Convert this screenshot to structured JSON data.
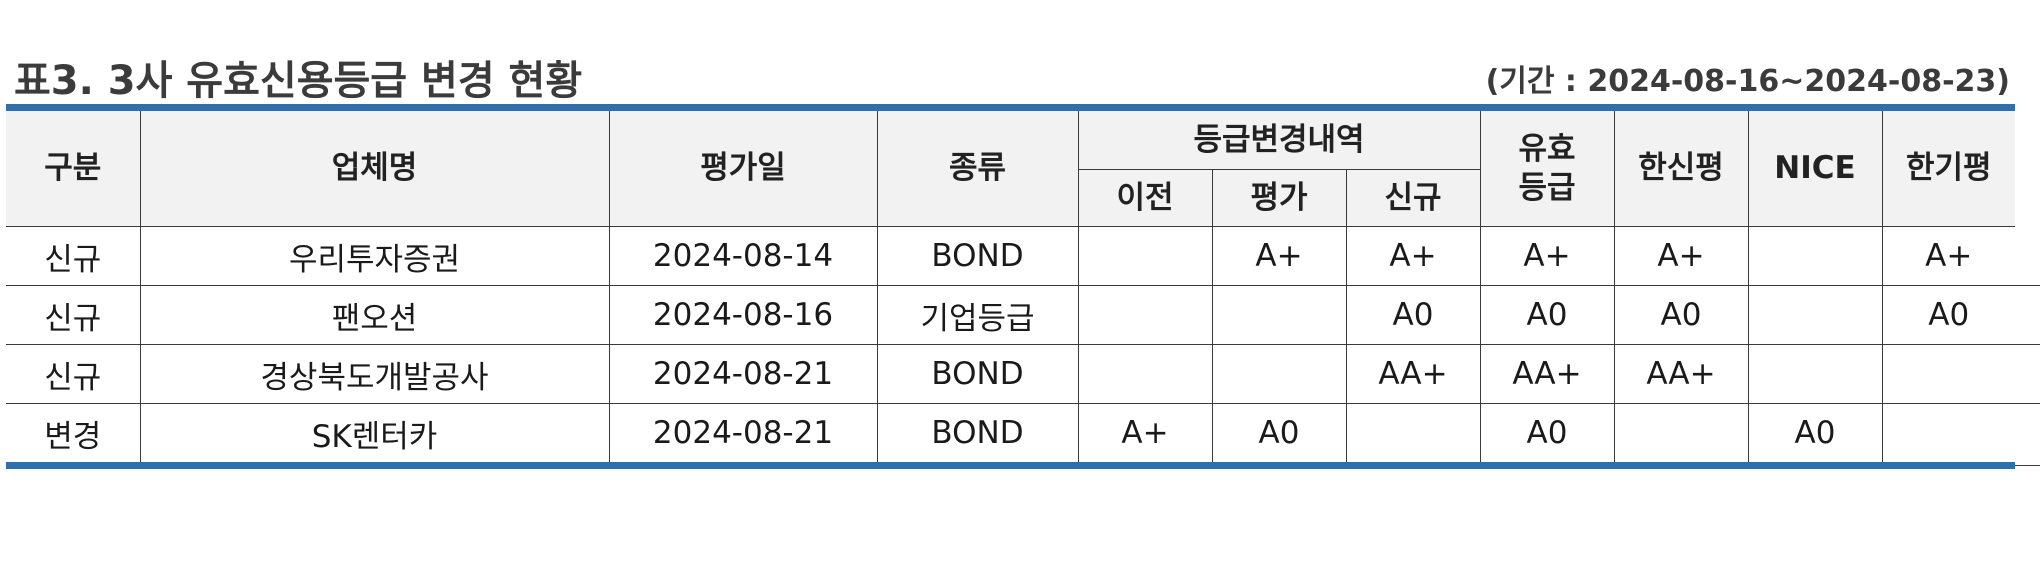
{
  "title": "표3. 3사 유효신용등급 변경 현황",
  "period": "(기간 : 2024-08-16~2024-08-23)",
  "table": {
    "headers": {
      "category": "구분",
      "company": "업체명",
      "eval_date": "평가일",
      "type": "종류",
      "change_group": "등급변경내역",
      "prev": "이전",
      "eval": "평가",
      "new": "신규",
      "valid_line1": "유효",
      "valid_line2": "등급",
      "hanshin": "한신평",
      "nice": "NICE",
      "hangi": "한기평"
    },
    "rows": [
      {
        "category": "신규",
        "company": "우리투자증권",
        "eval_date": "2024-08-14",
        "type": "BOND",
        "prev": "",
        "eval": "A+",
        "new": "A+",
        "valid": "A+",
        "hanshin": "A+",
        "nice": "",
        "hangi": "A+"
      },
      {
        "category": "신규",
        "company": "팬오션",
        "eval_date": "2024-08-16",
        "type": "기업등급",
        "prev": "",
        "eval": "",
        "new": "A0",
        "valid": "A0",
        "hanshin": "A0",
        "nice": "",
        "hangi": "A0"
      },
      {
        "category": "신규",
        "company": "경상북도개발공사",
        "eval_date": "2024-08-21",
        "type": "BOND",
        "prev": "",
        "eval": "",
        "new": "AA+",
        "valid": "AA+",
        "hanshin": "AA+",
        "nice": "",
        "hangi": ""
      },
      {
        "category": "변경",
        "company": "SK렌터카",
        "eval_date": "2024-08-21",
        "type": "BOND",
        "prev": "A+",
        "eval": "A0",
        "new": "",
        "valid": "A0",
        "hanshin": "",
        "nice": "A0",
        "hangi": ""
      }
    ]
  },
  "colors": {
    "accent_blue": "#2f6fae",
    "header_bg": "#f2f2f2",
    "title_text": "#3b3b3b"
  }
}
